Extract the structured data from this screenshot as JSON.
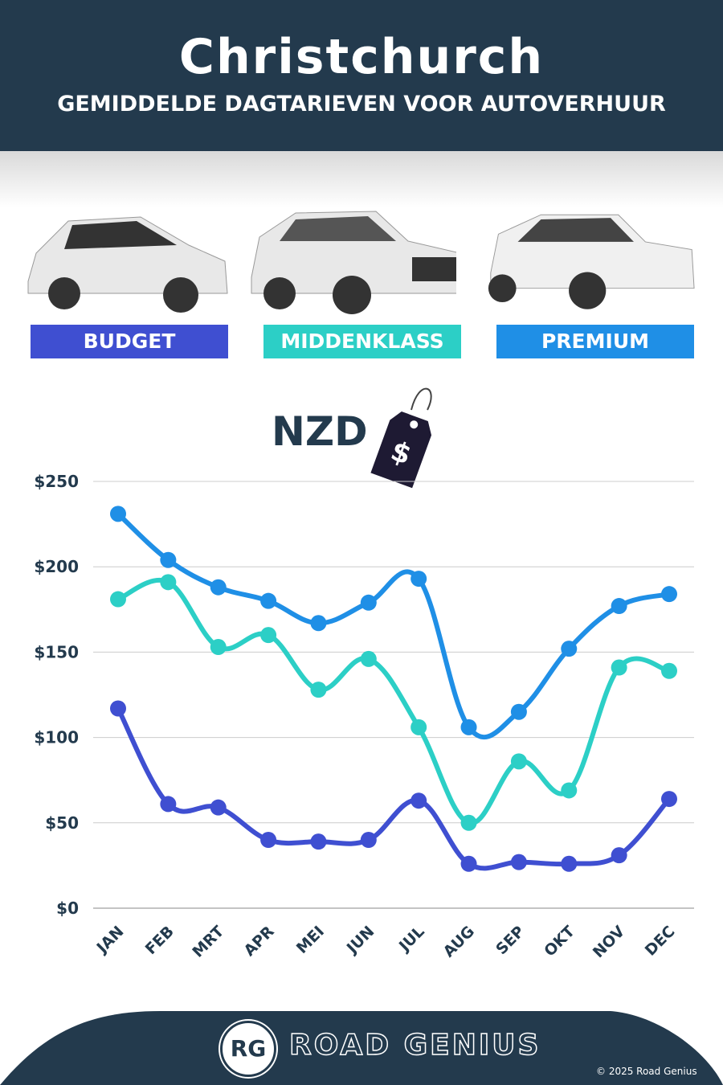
{
  "header": {
    "title": "Christchurch",
    "subtitle": "GEMIDDELDE DAGTARIEVEN VOOR AUTOVERHUUR"
  },
  "categories_labels": [
    "BUDGET",
    "MIDDENKLASS",
    "PREMIUM"
  ],
  "currency": {
    "label": "NZD",
    "tag_symbol": "$"
  },
  "chart_data": {
    "type": "line",
    "title": "Christchurch — Gemiddelde dagtarieven voor autoverhuur",
    "ylabel": "NZD",
    "xlabel": "",
    "ylim": [
      0,
      250
    ],
    "yticks": [
      0,
      50,
      100,
      150,
      200,
      250
    ],
    "ytick_labels": [
      "$0",
      "$50",
      "$100",
      "$150",
      "$200",
      "$250"
    ],
    "categories": [
      "JAN",
      "FEB",
      "MRT",
      "APR",
      "MEI",
      "JUN",
      "JUL",
      "AUG",
      "SEP",
      "OKT",
      "NOV",
      "DEC"
    ],
    "grid": true,
    "series": [
      {
        "name": "Premium",
        "color": "#1f8fe6",
        "values": [
          231,
          204,
          188,
          180,
          167,
          179,
          193,
          106,
          115,
          152,
          177,
          184
        ]
      },
      {
        "name": "Middenklass",
        "color": "#2ccfc6",
        "values": [
          181,
          191,
          153,
          160,
          128,
          146,
          106,
          50,
          86,
          69,
          141,
          139
        ]
      },
      {
        "name": "Budget",
        "color": "#3f4fd1",
        "values": [
          117,
          61,
          59,
          40,
          39,
          40,
          63,
          26,
          27,
          26,
          31,
          64
        ]
      }
    ]
  },
  "footer": {
    "logo": "RG",
    "brand": "ROAD GENIUS",
    "copyright": "© 2025 Road Genius"
  },
  "colors": {
    "header": "#233a4d",
    "budget": "#3f4fd1",
    "mid": "#2ccfc6",
    "premium": "#1f8fe6"
  }
}
